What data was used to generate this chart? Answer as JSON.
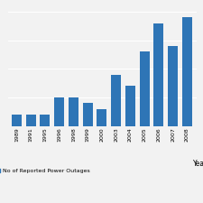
{
  "years": [
    "1989",
    "1991",
    "1995",
    "1996",
    "1998",
    "1999",
    "2000",
    "2003",
    "2004",
    "2005",
    "2006",
    "2007",
    "2008"
  ],
  "values": [
    2,
    2,
    2,
    5,
    5,
    4,
    3,
    9,
    7,
    13,
    18,
    14,
    19
  ],
  "bar_color": "#2e75b6",
  "xlabel": "Year",
  "legend_label": "No of Reported Power Outages",
  "background_color": "#f2f2f2",
  "grid_color": "#ffffff",
  "ylim": [
    0,
    21
  ],
  "figsize": [
    2.25,
    2.25
  ],
  "dpi": 100
}
